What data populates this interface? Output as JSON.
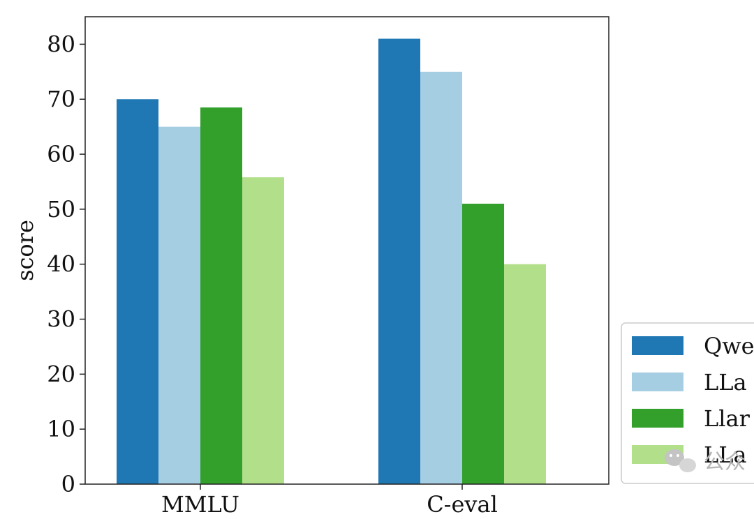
{
  "chart_data": {
    "type": "bar",
    "categories": [
      "MMLU",
      "C-eval"
    ],
    "series": [
      {
        "name": "Qwe",
        "color": "#1f78b4",
        "values": [
          70.0,
          81.0
        ]
      },
      {
        "name": "LLa",
        "color": "#a6cee3",
        "values": [
          65.0,
          75.0
        ]
      },
      {
        "name": "Llar",
        "color": "#33a02c",
        "values": [
          68.5,
          51.0
        ]
      },
      {
        "name": "LLa",
        "color": "#b2df8a",
        "values": [
          55.8,
          40.0
        ]
      }
    ],
    "title": "",
    "xlabel": "",
    "ylabel": "score",
    "ylim": [
      0,
      85
    ],
    "yticks": [
      0,
      10,
      20,
      30,
      40,
      50,
      60,
      70,
      80
    ],
    "grid": false,
    "legend_position": "lower-right, outside plot (cropped)"
  },
  "watermark": {
    "icon": "wechat-icon",
    "text": "公众"
  }
}
